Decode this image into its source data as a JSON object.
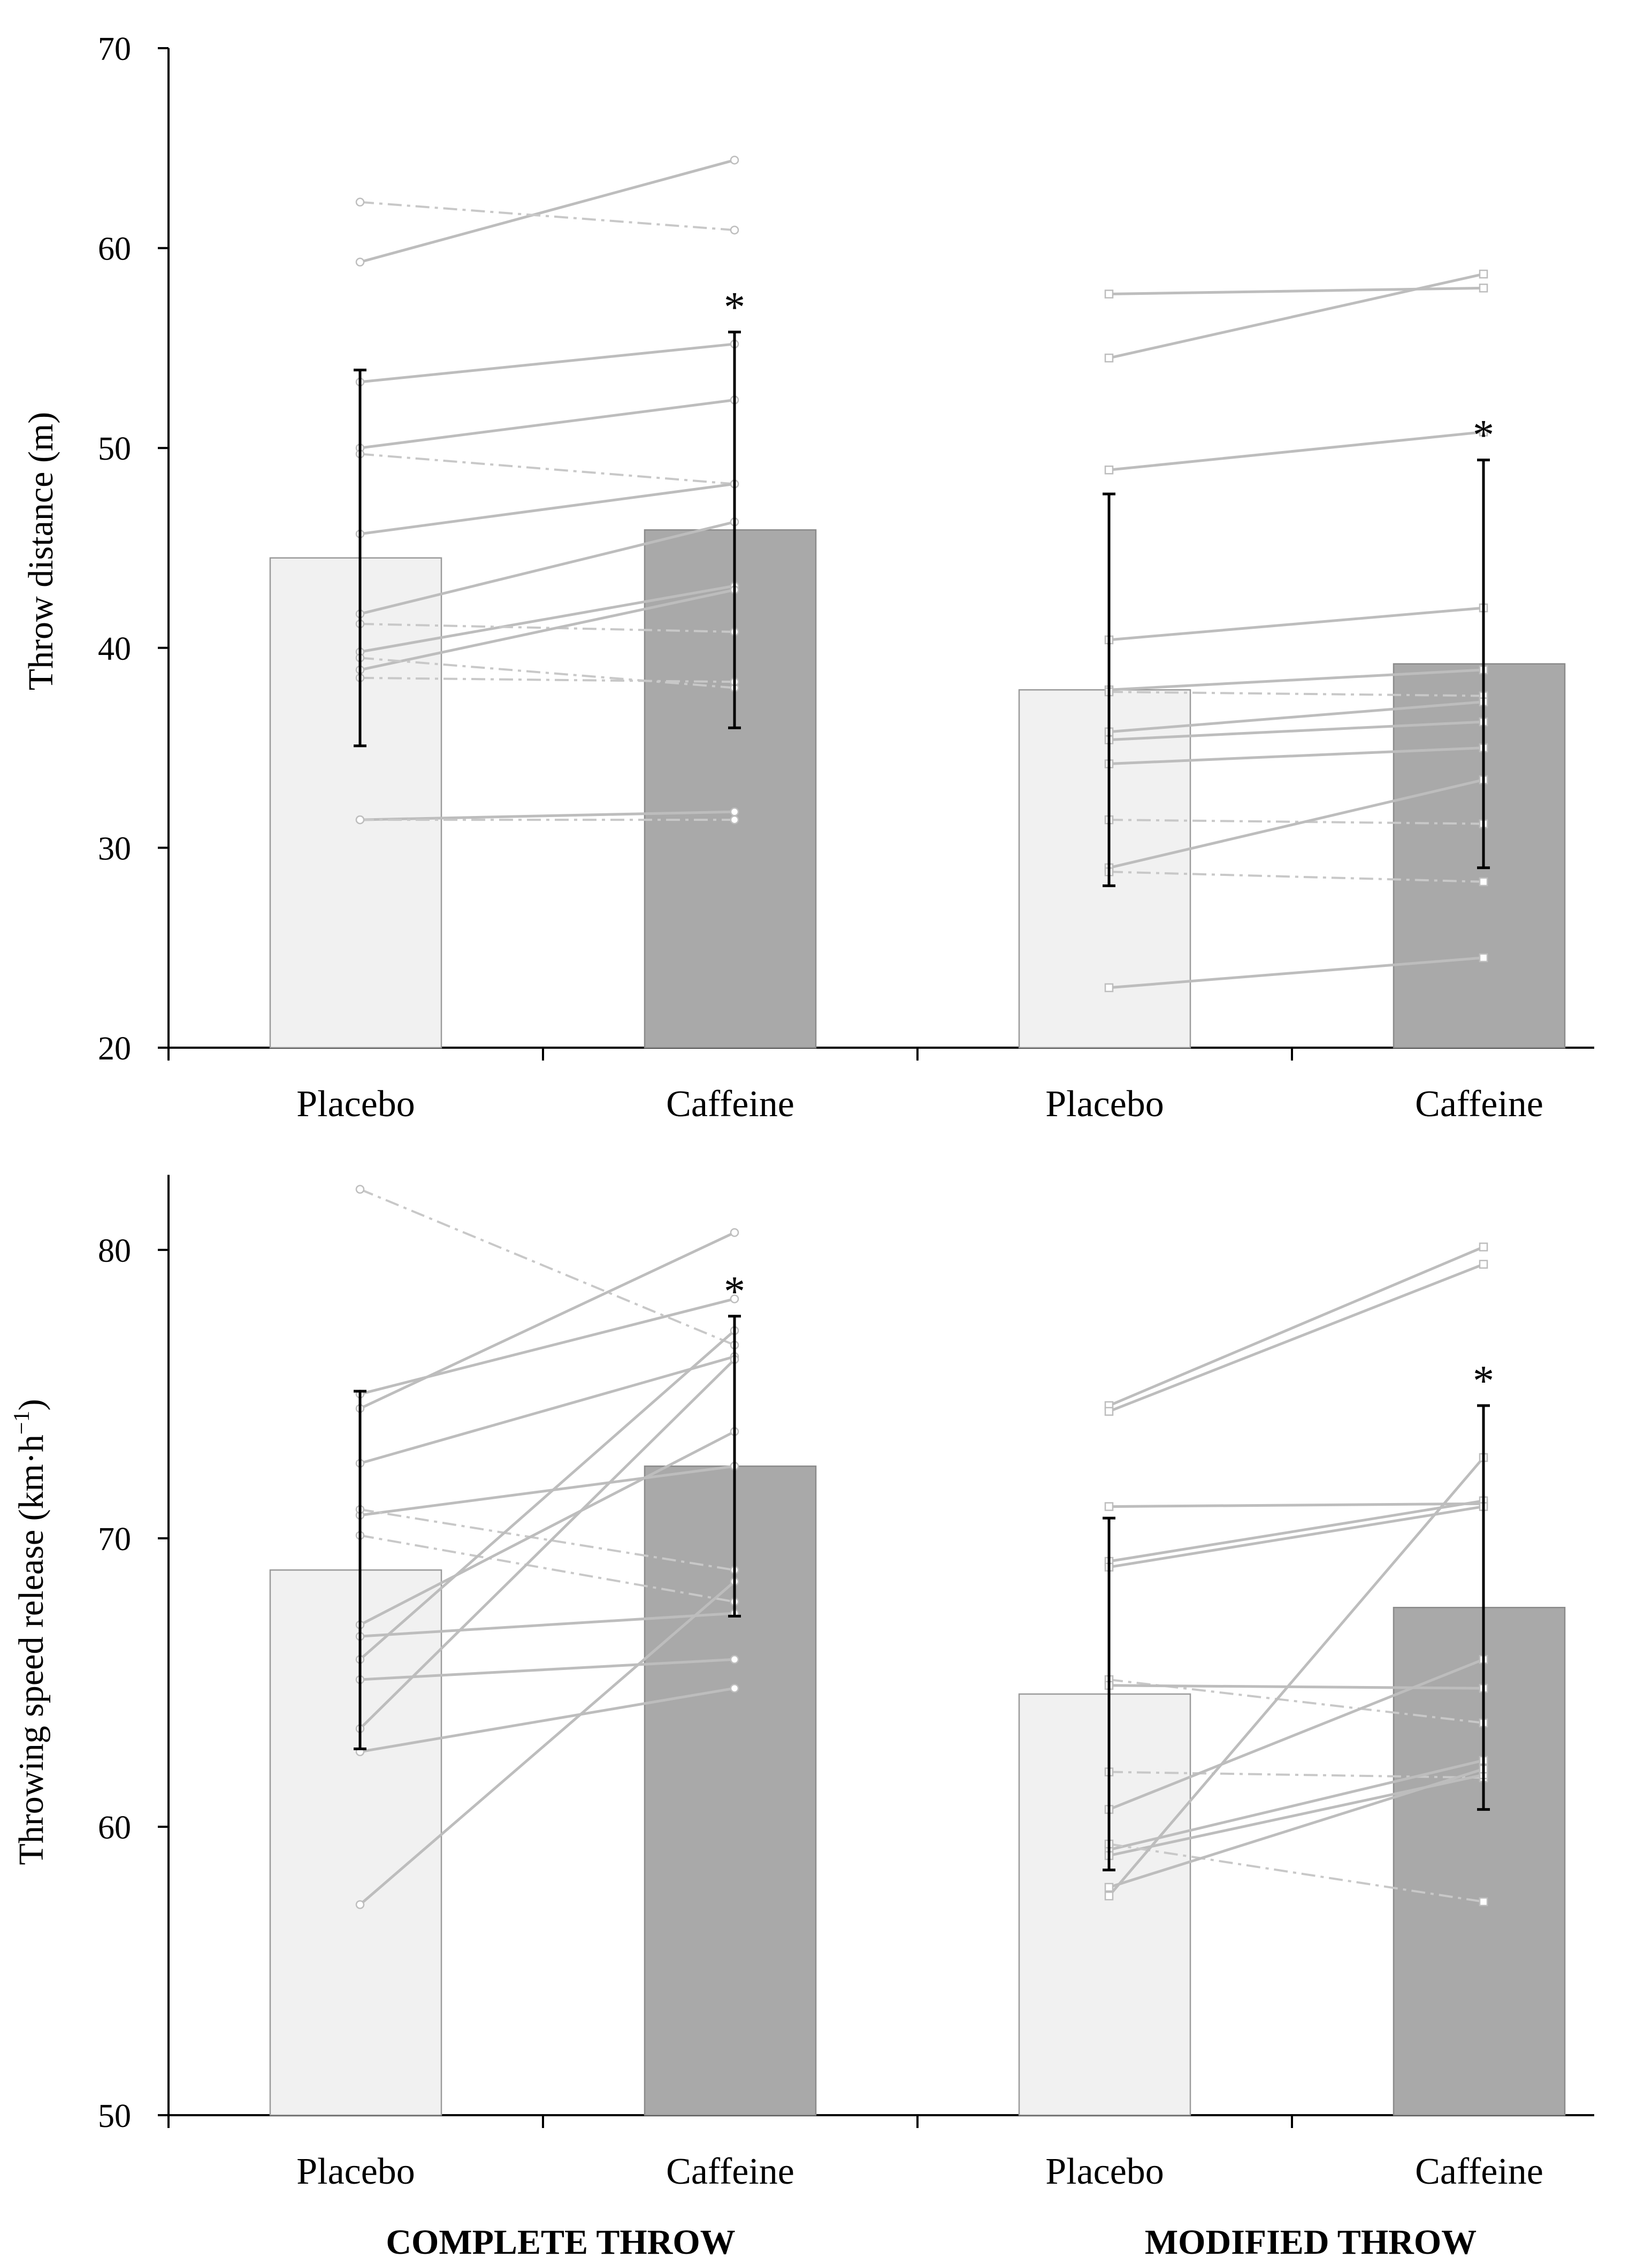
{
  "figure": {
    "group_labels": [
      "COMPLETE THROW",
      "MODIFIED THROW"
    ]
  },
  "chart_data": [
    {
      "type": "bar",
      "panel": "top",
      "ylabel": "Throw distance (m)",
      "ylim": [
        20,
        70
      ],
      "yticks": [
        20,
        30,
        40,
        50,
        60,
        70
      ],
      "categories": [
        "Placebo",
        "Caffeine",
        "Placebo",
        "Caffeine"
      ],
      "groups": [
        "COMPLETE THROW",
        "COMPLETE THROW",
        "MODIFIED THROW",
        "MODIFIED THROW"
      ],
      "series": [
        {
          "name": "mean",
          "values": [
            44.5,
            45.9,
            37.9,
            39.2
          ],
          "sd": [
            9.4,
            9.9,
            9.8,
            10.2
          ],
          "significant": [
            false,
            true,
            false,
            true
          ],
          "significance_marker": "*"
        }
      ],
      "individuals": {
        "complete": [
          {
            "pla": 59.3,
            "caf": 64.4,
            "style": "solid"
          },
          {
            "pla": 62.3,
            "caf": 60.9,
            "style": "dashdot"
          },
          {
            "pla": 53.3,
            "caf": 55.2,
            "style": "solid"
          },
          {
            "pla": 50.0,
            "caf": 52.4,
            "style": "solid"
          },
          {
            "pla": 49.7,
            "caf": 48.2,
            "style": "dashdot"
          },
          {
            "pla": 45.7,
            "caf": 48.2,
            "style": "solid"
          },
          {
            "pla": 41.7,
            "caf": 46.3,
            "style": "solid"
          },
          {
            "pla": 39.8,
            "caf": 43.1,
            "style": "solid"
          },
          {
            "pla": 41.2,
            "caf": 40.8,
            "style": "dashdot"
          },
          {
            "pla": 38.9,
            "caf": 42.9,
            "style": "solid"
          },
          {
            "pla": 39.5,
            "caf": 38.0,
            "style": "dashdot"
          },
          {
            "pla": 38.5,
            "caf": 38.3,
            "style": "dashdot"
          },
          {
            "pla": 31.4,
            "caf": 31.8,
            "style": "solid"
          },
          {
            "pla": 31.4,
            "caf": 31.4,
            "style": "dashdot"
          }
        ],
        "modified": [
          {
            "pla": 57.7,
            "caf": 58.0,
            "style": "solid"
          },
          {
            "pla": 54.5,
            "caf": 58.7,
            "style": "solid"
          },
          {
            "pla": 48.9,
            "caf": 50.8,
            "style": "solid"
          },
          {
            "pla": 40.4,
            "caf": 42.0,
            "style": "solid"
          },
          {
            "pla": 37.9,
            "caf": 38.9,
            "style": "solid"
          },
          {
            "pla": 37.8,
            "caf": 37.6,
            "style": "dashdot"
          },
          {
            "pla": 35.8,
            "caf": 37.3,
            "style": "solid"
          },
          {
            "pla": 35.4,
            "caf": 36.3,
            "style": "solid"
          },
          {
            "pla": 34.2,
            "caf": 35.0,
            "style": "solid"
          },
          {
            "pla": 31.4,
            "caf": 31.2,
            "style": "dashdot"
          },
          {
            "pla": 29.0,
            "caf": 33.4,
            "style": "solid"
          },
          {
            "pla": 28.8,
            "caf": 28.3,
            "style": "dashdot"
          },
          {
            "pla": 23.0,
            "caf": 24.5,
            "style": "solid"
          }
        ]
      }
    },
    {
      "type": "bar",
      "panel": "bottom",
      "ylabel": "Throwing speed release (km·h",
      "ylabel_sup": "−1",
      "ylabel_end": ")",
      "ylim": [
        50,
        82
      ],
      "yticks": [
        50,
        60,
        70,
        80
      ],
      "categories": [
        "Placebo",
        "Caffeine",
        "Placebo",
        "Caffeine"
      ],
      "groups": [
        "COMPLETE THROW",
        "COMPLETE THROW",
        "MODIFIED THROW",
        "MODIFIED THROW"
      ],
      "series": [
        {
          "name": "mean",
          "values": [
            68.9,
            72.5,
            64.6,
            67.6
          ],
          "sd": [
            6.2,
            5.2,
            6.1,
            7.0
          ],
          "significant": [
            false,
            true,
            false,
            true
          ],
          "significance_marker": "*"
        }
      ],
      "individuals": {
        "complete": [
          {
            "pla": 82.1,
            "caf": 76.7,
            "style": "dashdot"
          },
          {
            "pla": 74.5,
            "caf": 80.6,
            "style": "solid"
          },
          {
            "pla": 75.0,
            "caf": 78.3,
            "style": "solid"
          },
          {
            "pla": 72.6,
            "caf": 76.3,
            "style": "solid"
          },
          {
            "pla": 70.8,
            "caf": 72.5,
            "style": "solid"
          },
          {
            "pla": 71.0,
            "caf": 68.9,
            "style": "dashdot"
          },
          {
            "pla": 70.1,
            "caf": 67.8,
            "style": "dashdot"
          },
          {
            "pla": 67.0,
            "caf": 73.7,
            "style": "solid"
          },
          {
            "pla": 66.6,
            "caf": 67.4,
            "style": "solid"
          },
          {
            "pla": 65.1,
            "caf": 65.8,
            "style": "solid"
          },
          {
            "pla": 63.4,
            "caf": 76.2,
            "style": "solid"
          },
          {
            "pla": 62.6,
            "caf": 64.8,
            "style": "solid"
          },
          {
            "pla": 57.3,
            "caf": 68.5,
            "style": "solid"
          },
          {
            "pla": 65.8,
            "caf": 77.2,
            "style": "solid"
          }
        ],
        "modified": [
          {
            "pla": 74.6,
            "caf": 80.1,
            "style": "solid"
          },
          {
            "pla": 74.4,
            "caf": 79.5,
            "style": "solid"
          },
          {
            "pla": 71.1,
            "caf": 71.2,
            "style": "solid"
          },
          {
            "pla": 69.2,
            "caf": 71.3,
            "style": "solid"
          },
          {
            "pla": 69.0,
            "caf": 71.1,
            "style": "solid"
          },
          {
            "pla": 65.1,
            "caf": 63.6,
            "style": "dashdot"
          },
          {
            "pla": 64.9,
            "caf": 64.8,
            "style": "solid"
          },
          {
            "pla": 61.9,
            "caf": 61.7,
            "style": "dashdot"
          },
          {
            "pla": 60.6,
            "caf": 65.8,
            "style": "solid"
          },
          {
            "pla": 59.2,
            "caf": 62.3,
            "style": "solid"
          },
          {
            "pla": 59.0,
            "caf": 61.8,
            "style": "solid"
          },
          {
            "pla": 59.4,
            "caf": 57.4,
            "style": "dashdot"
          },
          {
            "pla": 57.9,
            "caf": 62.0,
            "style": "solid"
          },
          {
            "pla": 57.6,
            "caf": 72.8,
            "style": "solid"
          }
        ]
      }
    }
  ]
}
